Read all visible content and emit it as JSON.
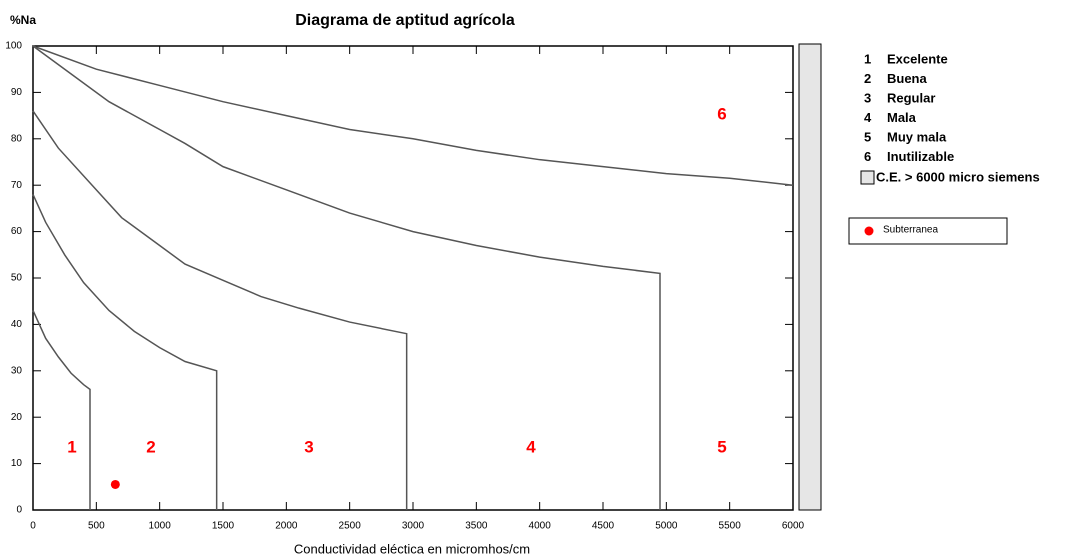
{
  "chart_data": {
    "type": "line",
    "title": "Diagrama de aptitud agrícola",
    "xlabel": "Conductividad eléctica en micromhos/cm",
    "ylabel": "%Na",
    "xlim": [
      0,
      6000
    ],
    "ylim": [
      0,
      100
    ],
    "xticks": [
      0,
      500,
      1000,
      1500,
      2000,
      2500,
      3000,
      3500,
      4000,
      4500,
      5000,
      5500,
      6000
    ],
    "yticks": [
      0,
      10,
      20,
      30,
      40,
      50,
      60,
      70,
      80,
      90,
      100
    ],
    "line_color": "#555555",
    "series": [
      {
        "x": [
          0,
          100,
          200,
          300,
          400,
          450,
          450
        ],
        "y": [
          43,
          37,
          33,
          29.5,
          27,
          26,
          0
        ]
      },
      {
        "x": [
          0,
          100,
          250,
          400,
          600,
          800,
          1000,
          1200,
          1450,
          1450
        ],
        "y": [
          68,
          62,
          55,
          49,
          43,
          38.5,
          35,
          32,
          30,
          0
        ]
      },
      {
        "x": [
          0,
          200,
          500,
          700,
          1000,
          1200,
          1500,
          1800,
          2100,
          2500,
          2950,
          2950
        ],
        "y": [
          86,
          78,
          69,
          63,
          57,
          53,
          49.5,
          46,
          43.5,
          40.5,
          38,
          0
        ]
      },
      {
        "x": [
          0,
          300,
          600,
          1000,
          1200,
          1500,
          2000,
          2500,
          3000,
          3500,
          4000,
          4500,
          4950,
          4950
        ],
        "y": [
          100,
          94,
          88,
          82,
          79,
          74,
          69,
          64,
          60,
          57,
          54.5,
          52.5,
          51,
          0
        ]
      },
      {
        "x": [
          0,
          500,
          1000,
          1500,
          2000,
          2500,
          3000,
          3500,
          4000,
          4500,
          5000,
          5500,
          6000
        ],
        "y": [
          100,
          95,
          91.5,
          88,
          85,
          82,
          80,
          77.5,
          75.5,
          74,
          72.5,
          71.5,
          70
        ]
      }
    ],
    "points": [
      {
        "name": "Subterranea",
        "color": "#ff0000",
        "x": [
          650
        ],
        "y": [
          5.5
        ]
      }
    ],
    "regions": [
      "1",
      "2",
      "3",
      "4",
      "5",
      "6"
    ],
    "region_color": "#ff0000",
    "legend": [
      {
        "key": "1",
        "label": "Excelente"
      },
      {
        "key": "2",
        "label": "Buena"
      },
      {
        "key": "3",
        "label": "Regular"
      },
      {
        "key": "4",
        "label": "Mala"
      },
      {
        "key": "5",
        "label": "Muy mala"
      },
      {
        "key": "6",
        "label": "Inutilizable"
      }
    ],
    "box_legend": "C.E. > 6000 micro siemens"
  }
}
